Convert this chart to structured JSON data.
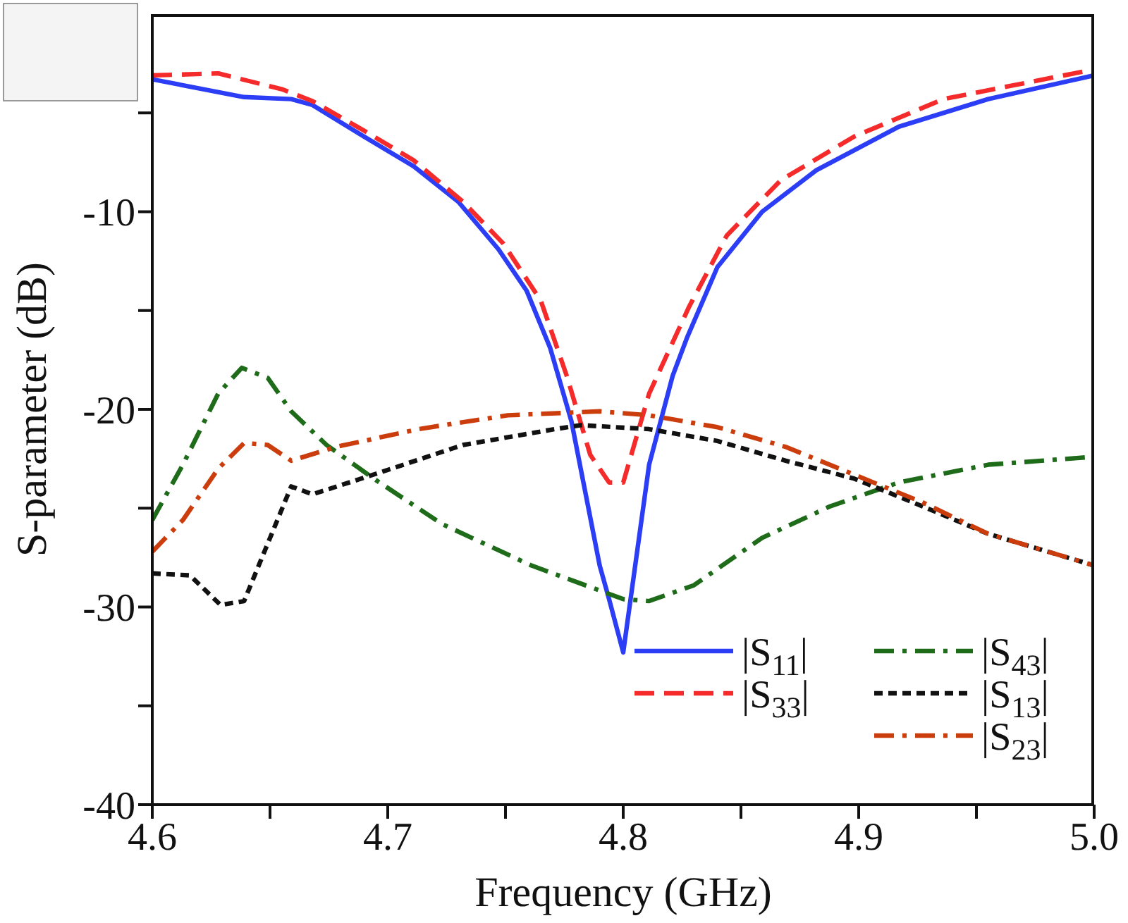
{
  "chart_data": {
    "type": "line",
    "xlabel": "Frequency (GHz)",
    "ylabel": "S-parameter (dB)",
    "xlim": [
      4.6,
      5.0
    ],
    "ylim": [
      -40,
      0
    ],
    "xticks": [
      4.6,
      {
        "value": 4.65,
        "label": null
      },
      4.7,
      {
        "value": 4.75,
        "label": null
      },
      4.8,
      {
        "value": 4.85,
        "label": null
      },
      4.9,
      {
        "value": 4.95,
        "label": null
      },
      {
        "value": 5.0,
        "label": "5.0"
      }
    ],
    "yticks": [
      -40,
      {
        "value": -35,
        "label": null
      },
      -30,
      {
        "value": -25,
        "label": null
      },
      -20,
      {
        "value": -15,
        "label": null
      },
      -10,
      {
        "value": -5,
        "label": null
      }
    ],
    "grid": false,
    "legend": "bottom right",
    "marker": "none",
    "series": [
      {
        "name": "|S$_{11}$|",
        "color": "#2b3df5",
        "line_style": "solid",
        "x": [
          4.6,
          4.639,
          4.659,
          4.668,
          4.69,
          4.711,
          4.73,
          4.747,
          4.759,
          4.769,
          4.778,
          4.79,
          4.794,
          4.8,
          4.811,
          4.821,
          4.827,
          4.84,
          4.859,
          4.882,
          4.917,
          4.955,
          5.0
        ],
        "values": [
          -3.3,
          -4.2,
          -4.3,
          -4.6,
          -6.2,
          -7.7,
          -9.5,
          -11.9,
          -14.0,
          -16.9,
          -20.6,
          -27.9,
          -29.6,
          -32.3,
          -22.8,
          -18.3,
          -16.4,
          -12.8,
          -10.0,
          -7.9,
          -5.7,
          -4.3,
          -3.1
        ]
      },
      {
        "name": "|S$_{33}$|",
        "color": "#f52a2a",
        "line_style": "dashed",
        "x": [
          4.6,
          4.628,
          4.655,
          4.668,
          4.69,
          4.711,
          4.732,
          4.749,
          4.765,
          4.776,
          4.786,
          4.794,
          4.8,
          4.811,
          4.828,
          4.844,
          4.867,
          4.898,
          4.936,
          5.0
        ],
        "values": [
          -3.1,
          -3.0,
          -3.8,
          -4.4,
          -5.9,
          -7.4,
          -9.5,
          -11.6,
          -14.5,
          -18.3,
          -22.3,
          -23.7,
          -23.7,
          -19.2,
          -14.8,
          -11.2,
          -8.4,
          -6.2,
          -4.3,
          -2.8
        ]
      },
      {
        "name": "|S$_{43}$|",
        "color": "#1e6b1a",
        "line_style": "dashdot",
        "x": [
          4.6,
          4.613,
          4.628,
          4.638,
          4.649,
          4.659,
          4.674,
          4.694,
          4.723,
          4.761,
          4.8,
          4.811,
          4.83,
          4.859,
          4.888,
          4.917,
          4.955,
          5.0
        ],
        "values": [
          -25.6,
          -22.8,
          -19.2,
          -17.9,
          -18.4,
          -20.1,
          -21.8,
          -23.5,
          -25.8,
          -27.9,
          -29.6,
          -29.7,
          -28.9,
          -26.5,
          -24.9,
          -23.7,
          -22.8,
          -22.4
        ]
      },
      {
        "name": "|S$_{13}$|",
        "color": "#111111",
        "line_style": "dotted",
        "x": [
          4.6,
          4.616,
          4.629,
          4.639,
          4.649,
          4.659,
          4.668,
          4.694,
          4.732,
          4.771,
          4.782,
          4.811,
          4.84,
          4.869,
          4.898,
          4.927,
          4.955,
          5.0
        ],
        "values": [
          -28.3,
          -28.4,
          -29.9,
          -29.7,
          -26.8,
          -23.9,
          -24.3,
          -23.3,
          -21.8,
          -21.0,
          -20.8,
          -21.0,
          -21.6,
          -22.6,
          -23.5,
          -24.9,
          -26.3,
          -27.9
        ]
      },
      {
        "name": "|S$_{23}$|",
        "color": "#cc3d0e",
        "line_style": "dashdot",
        "x": [
          4.6,
          4.613,
          4.628,
          4.639,
          4.649,
          4.659,
          4.678,
          4.713,
          4.751,
          4.79,
          4.811,
          4.84,
          4.869,
          4.898,
          4.927,
          4.955,
          5.0
        ],
        "values": [
          -27.2,
          -25.6,
          -23.0,
          -21.7,
          -21.8,
          -22.6,
          -21.9,
          -21.0,
          -20.3,
          -20.1,
          -20.3,
          -20.9,
          -21.9,
          -23.3,
          -24.7,
          -26.3,
          -27.9
        ]
      }
    ]
  }
}
